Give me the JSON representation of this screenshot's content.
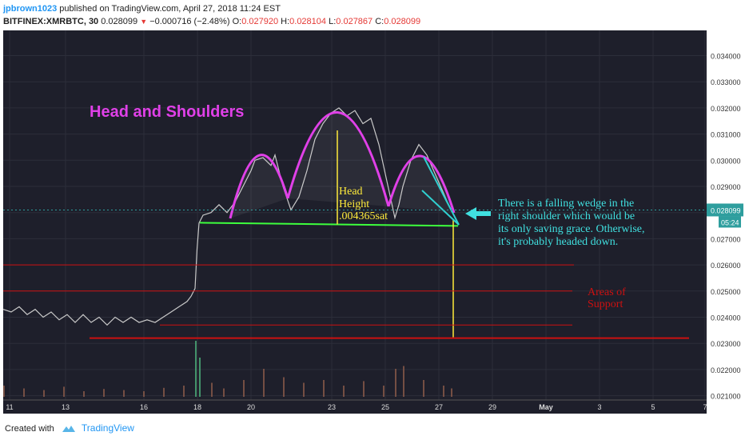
{
  "header": {
    "author": "jpbrown1023",
    "published": " published on TradingView.com, April 27, 2018 11:24 EST",
    "symbol": "BITFINEX:XMRBTC, 30",
    "last": "0.028099",
    "change": "−0.000716 (−2.48%)",
    "o_label": "O:",
    "o_val": "0.027920",
    "h_label": "H:",
    "h_val": "0.028104",
    "l_label": "L:",
    "l_val": "0.027867",
    "c_label": "C:",
    "c_val": "0.028099"
  },
  "footer": {
    "created": "Created with",
    "brand": "TradingView"
  },
  "colors": {
    "background": "#1e1f2b",
    "pattern": "#e040e8",
    "neckline": "#3dff3d",
    "support": "#cc1010",
    "target": "#ffeb3b",
    "wedge": "#30d0d0",
    "annotation": "#40e0e0",
    "price_badge": "#2e9e9e"
  },
  "chart_data": {
    "type": "line",
    "title": "Head and Shoulders",
    "ylim": [
      0.0205,
      0.0349
    ],
    "y_ticks": [
      "0.034000",
      "0.033000",
      "0.032000",
      "0.031000",
      "0.030000",
      "0.029000",
      "0.028000",
      "0.027000",
      "0.026000",
      "0.025000",
      "0.024000",
      "0.023000",
      "0.022000",
      "0.021000"
    ],
    "x_ticks": [
      "11",
      "13",
      "16",
      "18",
      "20",
      "23",
      "25",
      "27",
      "29",
      "May",
      "3",
      "5",
      "7"
    ],
    "current_price": "0.028099",
    "countdown": "05:24",
    "series": [
      {
        "values": [
          [
            0,
            0.0243
          ],
          [
            2,
            0.0242
          ],
          [
            4,
            0.0244
          ],
          [
            6,
            0.0241
          ],
          [
            8,
            0.0243
          ],
          [
            10,
            0.024
          ],
          [
            12,
            0.0242
          ],
          [
            14,
            0.0239
          ],
          [
            16,
            0.0241
          ],
          [
            18,
            0.0238
          ],
          [
            20,
            0.0241
          ],
          [
            22,
            0.0238
          ],
          [
            24,
            0.024
          ],
          [
            26,
            0.0237
          ],
          [
            28,
            0.024
          ],
          [
            30,
            0.0238
          ],
          [
            32,
            0.024
          ],
          [
            34,
            0.0238
          ],
          [
            36,
            0.0239
          ],
          [
            38,
            0.0238
          ],
          [
            40,
            0.024
          ],
          [
            42,
            0.0242
          ],
          [
            44,
            0.0244
          ],
          [
            46,
            0.0246
          ],
          [
            47,
            0.0248
          ],
          [
            48,
            0.0251
          ],
          [
            48.5,
            0.0266
          ],
          [
            49,
            0.0276
          ],
          [
            50,
            0.0279
          ],
          [
            52,
            0.028
          ],
          [
            54,
            0.0283
          ],
          [
            56,
            0.028
          ],
          [
            58,
            0.0284
          ],
          [
            60,
            0.029
          ],
          [
            62,
            0.0296
          ],
          [
            63,
            0.03
          ],
          [
            65,
            0.0301
          ],
          [
            67,
            0.0298
          ],
          [
            68,
            0.0302
          ],
          [
            70,
            0.029
          ],
          [
            72,
            0.0281
          ],
          [
            74,
            0.0286
          ],
          [
            76,
            0.0296
          ],
          [
            78,
            0.0308
          ],
          [
            80,
            0.0314
          ],
          [
            82,
            0.0318
          ],
          [
            84,
            0.032
          ],
          [
            86,
            0.0317
          ],
          [
            88,
            0.0319
          ],
          [
            90,
            0.0314
          ],
          [
            92,
            0.0316
          ],
          [
            94,
            0.0306
          ],
          [
            96,
            0.0292
          ],
          [
            98,
            0.0278
          ],
          [
            99,
            0.0283
          ],
          [
            100,
            0.029
          ],
          [
            102,
            0.03
          ],
          [
            104,
            0.0306
          ],
          [
            106,
            0.0302
          ],
          [
            108,
            0.0295
          ],
          [
            110,
            0.0288
          ],
          [
            112,
            0.0281
          ]
        ]
      }
    ],
    "volume": [
      [
        0,
        0.2
      ],
      [
        5,
        0.15
      ],
      [
        10,
        0.12
      ],
      [
        15,
        0.18
      ],
      [
        20,
        0.1
      ],
      [
        25,
        0.14
      ],
      [
        30,
        0.12
      ],
      [
        35,
        0.1
      ],
      [
        40,
        0.16
      ],
      [
        45,
        0.2
      ],
      [
        48,
        1.0
      ],
      [
        49,
        0.7
      ],
      [
        52,
        0.25
      ],
      [
        55,
        0.15
      ],
      [
        60,
        0.3
      ],
      [
        65,
        0.5
      ],
      [
        70,
        0.35
      ],
      [
        75,
        0.25
      ],
      [
        80,
        0.3
      ],
      [
        85,
        0.2
      ],
      [
        90,
        0.28
      ],
      [
        95,
        0.2
      ],
      [
        98,
        0.5
      ],
      [
        100,
        0.55
      ],
      [
        105,
        0.3
      ],
      [
        110,
        0.2
      ],
      [
        112,
        0.15
      ]
    ],
    "annotations": {
      "head_label": "Head",
      "height_label": "Height",
      "height_value": ".004365sat",
      "wedge_note": [
        "There is a falling wedge in the",
        "right shoulder which would be",
        "its only saving grace. Otherwise,",
        "it's probably headed down."
      ],
      "support_label": [
        "Areas of",
        "Support"
      ]
    },
    "levels": {
      "neckline": 0.02755,
      "support": [
        0.026,
        0.025,
        0.0237,
        0.0232
      ],
      "target": 0.0232
    }
  }
}
